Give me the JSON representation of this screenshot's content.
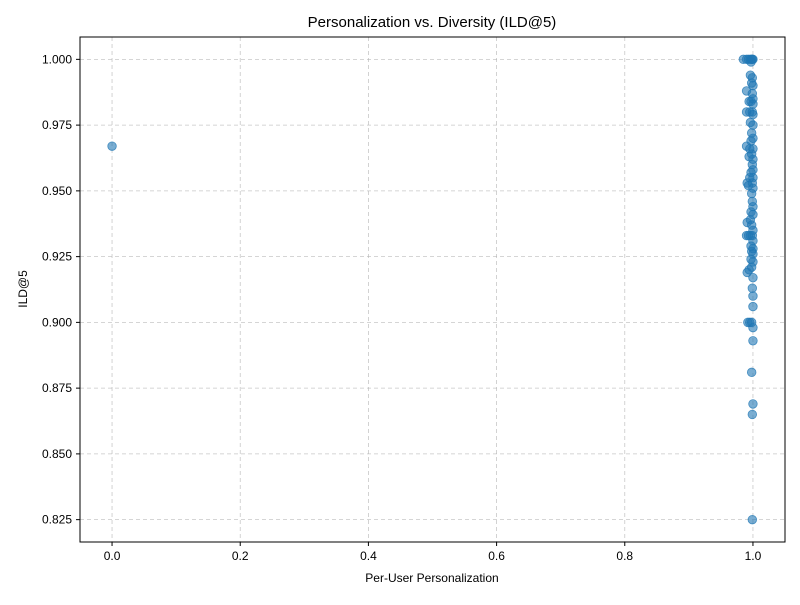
{
  "chart_data": {
    "type": "scatter",
    "title": "Personalization vs. Diversity (ILD@5)",
    "xlabel": "Per-User Personalization",
    "ylabel": "ILD@5",
    "xlim": [
      -0.05,
      1.05
    ],
    "ylim": [
      0.8165,
      1.0085
    ],
    "xticks": [
      0.0,
      0.2,
      0.4,
      0.6,
      0.8,
      1.0
    ],
    "xtick_labels": [
      "0.0",
      "0.2",
      "0.4",
      "0.6",
      "0.8",
      "1.0"
    ],
    "yticks": [
      0.825,
      0.85,
      0.875,
      0.9,
      0.925,
      0.95,
      0.975,
      1.0
    ],
    "ytick_labels": [
      "0.825",
      "0.850",
      "0.875",
      "0.900",
      "0.925",
      "0.950",
      "0.975",
      "1.000"
    ],
    "grid": true,
    "legend": "none",
    "marker_color": "#1f77b4",
    "marker_alpha": 0.6,
    "points": [
      {
        "x": 0.0,
        "y": 0.967
      },
      {
        "x": 0.985,
        "y": 1.0
      },
      {
        "x": 0.99,
        "y": 1.0
      },
      {
        "x": 0.993,
        "y": 1.0
      },
      {
        "x": 0.996,
        "y": 1.0
      },
      {
        "x": 0.998,
        "y": 1.0
      },
      {
        "x": 1.0,
        "y": 1.0
      },
      {
        "x": 0.997,
        "y": 0.999
      },
      {
        "x": 0.999,
        "y": 1.0
      },
      {
        "x": 0.996,
        "y": 0.994
      },
      {
        "x": 0.999,
        "y": 0.993
      },
      {
        "x": 1.0,
        "y": 0.99
      },
      {
        "x": 0.998,
        "y": 0.991
      },
      {
        "x": 0.99,
        "y": 0.988
      },
      {
        "x": 0.999,
        "y": 0.987
      },
      {
        "x": 1.0,
        "y": 0.985
      },
      {
        "x": 0.997,
        "y": 0.984
      },
      {
        "x": 0.994,
        "y": 0.984
      },
      {
        "x": 1.0,
        "y": 0.983
      },
      {
        "x": 0.99,
        "y": 0.98
      },
      {
        "x": 0.995,
        "y": 0.98
      },
      {
        "x": 0.999,
        "y": 0.98
      },
      {
        "x": 1.0,
        "y": 0.979
      },
      {
        "x": 0.996,
        "y": 0.976
      },
      {
        "x": 1.0,
        "y": 0.975
      },
      {
        "x": 0.998,
        "y": 0.972
      },
      {
        "x": 1.0,
        "y": 0.97
      },
      {
        "x": 0.997,
        "y": 0.969
      },
      {
        "x": 0.99,
        "y": 0.967
      },
      {
        "x": 0.995,
        "y": 0.966
      },
      {
        "x": 1.0,
        "y": 0.966
      },
      {
        "x": 0.998,
        "y": 0.964
      },
      {
        "x": 0.994,
        "y": 0.963
      },
      {
        "x": 1.0,
        "y": 0.962
      },
      {
        "x": 0.999,
        "y": 0.96
      },
      {
        "x": 1.0,
        "y": 0.958
      },
      {
        "x": 0.997,
        "y": 0.957
      },
      {
        "x": 0.995,
        "y": 0.955
      },
      {
        "x": 1.0,
        "y": 0.955
      },
      {
        "x": 0.991,
        "y": 0.953
      },
      {
        "x": 0.993,
        "y": 0.952
      },
      {
        "x": 0.999,
        "y": 0.953
      },
      {
        "x": 1.0,
        "y": 0.951
      },
      {
        "x": 0.998,
        "y": 0.949
      },
      {
        "x": 0.999,
        "y": 0.946
      },
      {
        "x": 1.0,
        "y": 0.944
      },
      {
        "x": 0.997,
        "y": 0.942
      },
      {
        "x": 1.0,
        "y": 0.941
      },
      {
        "x": 0.996,
        "y": 0.939
      },
      {
        "x": 0.991,
        "y": 0.938
      },
      {
        "x": 0.998,
        "y": 0.937
      },
      {
        "x": 1.0,
        "y": 0.935
      },
      {
        "x": 0.99,
        "y": 0.933
      },
      {
        "x": 0.993,
        "y": 0.933
      },
      {
        "x": 0.996,
        "y": 0.933
      },
      {
        "x": 0.999,
        "y": 0.933
      },
      {
        "x": 1.0,
        "y": 0.931
      },
      {
        "x": 0.997,
        "y": 0.929
      },
      {
        "x": 1.0,
        "y": 0.928
      },
      {
        "x": 0.998,
        "y": 0.927
      },
      {
        "x": 1.0,
        "y": 0.926
      },
      {
        "x": 0.997,
        "y": 0.924
      },
      {
        "x": 1.0,
        "y": 0.923
      },
      {
        "x": 0.998,
        "y": 0.921
      },
      {
        "x": 0.994,
        "y": 0.92
      },
      {
        "x": 0.991,
        "y": 0.919
      },
      {
        "x": 1.0,
        "y": 0.917
      },
      {
        "x": 0.999,
        "y": 0.913
      },
      {
        "x": 1.0,
        "y": 0.91
      },
      {
        "x": 1.0,
        "y": 0.906
      },
      {
        "x": 0.992,
        "y": 0.9
      },
      {
        "x": 0.995,
        "y": 0.9
      },
      {
        "x": 0.998,
        "y": 0.9
      },
      {
        "x": 1.0,
        "y": 0.898
      },
      {
        "x": 1.0,
        "y": 0.893
      },
      {
        "x": 0.998,
        "y": 0.881
      },
      {
        "x": 1.0,
        "y": 0.869
      },
      {
        "x": 0.999,
        "y": 0.865
      },
      {
        "x": 0.999,
        "y": 0.825
      }
    ]
  }
}
